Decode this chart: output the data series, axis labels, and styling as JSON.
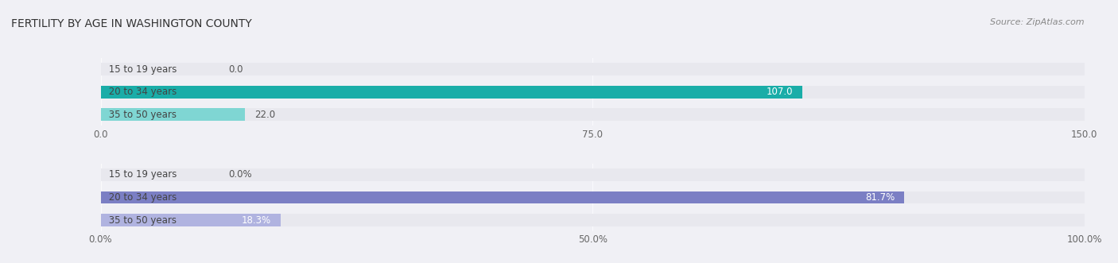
{
  "title": "FERTILITY BY AGE IN WASHINGTON COUNTY",
  "source": "Source: ZipAtlas.com",
  "top_chart": {
    "categories": [
      "15 to 19 years",
      "20 to 34 years",
      "35 to 50 years"
    ],
    "values": [
      0.0,
      107.0,
      22.0
    ],
    "xlim": [
      0,
      150
    ],
    "xticks": [
      0.0,
      75.0,
      150.0
    ],
    "bar_color_dark": "#1aada8",
    "bar_color_light": "#7fd6d3",
    "label_inside_color": "#ffffff",
    "label_outside_color": "#555555"
  },
  "bottom_chart": {
    "categories": [
      "15 to 19 years",
      "20 to 34 years",
      "35 to 50 years"
    ],
    "values": [
      0.0,
      81.7,
      18.3
    ],
    "xlim": [
      0,
      100
    ],
    "xticks": [
      0.0,
      50.0,
      100.0
    ],
    "xtick_labels": [
      "0.0%",
      "50.0%",
      "100.0%"
    ],
    "bar_color_dark": "#7b7fc4",
    "bar_color_light": "#b0b3e0",
    "label_inside_color": "#ffffff",
    "label_outside_color": "#555555"
  },
  "background_color": "#f0f0f5",
  "bar_bg_color": "#e8e8ee",
  "bar_height": 0.55,
  "label_fontsize": 8.5,
  "tick_fontsize": 8.5,
  "title_fontsize": 10,
  "source_fontsize": 8,
  "category_fontsize": 8.5
}
